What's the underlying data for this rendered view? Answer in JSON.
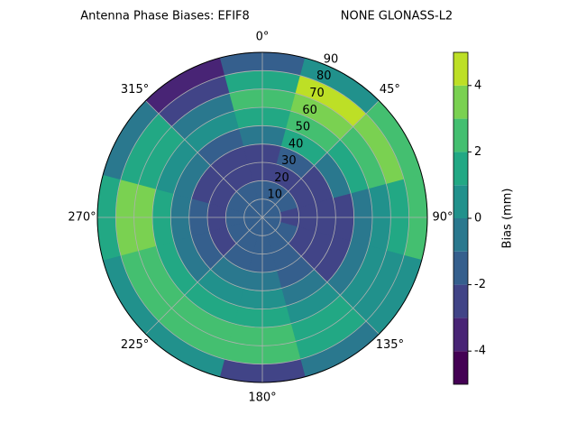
{
  "chart_data": {
    "type": "polar-contour",
    "title": "Antenna Phase Biases: EFIF8",
    "subtitle": "NONE GLONASS-L2",
    "colorbar_label": "Bias (mm)",
    "theta": [
      0,
      30,
      60,
      90,
      120,
      150,
      180,
      210,
      240,
      270,
      300,
      330
    ],
    "r": [
      5,
      15,
      25,
      35,
      45,
      55,
      65,
      75,
      85
    ],
    "values": [
      [
        -1.5,
        -1.5,
        -1.5,
        -1.5,
        -1.5,
        -1.5,
        -1.5,
        -1.5,
        -1.5,
        -1.5,
        -1.5,
        -1.5
      ],
      [
        -1.5,
        -1.5,
        -1.5,
        -2.5,
        -1.5,
        -1.5,
        -1.5,
        -1.5,
        -1.5,
        -1.5,
        -1.5,
        -1.5
      ],
      [
        -2.5,
        -2.5,
        -2.5,
        -2.5,
        -2.5,
        -1.5,
        -1.5,
        -1.5,
        -2.5,
        -2.5,
        -2.5,
        -2.5
      ],
      [
        -2.5,
        -1.5,
        -2.5,
        -2.5,
        -2.5,
        -1.5,
        -0.5,
        -0.5,
        -1.5,
        -1.5,
        -2.5,
        -2.5
      ],
      [
        -0.5,
        1.5,
        -0.5,
        -2.5,
        -2.5,
        -0.5,
        0.5,
        0.5,
        -0.5,
        -0.5,
        -0.5,
        -1.5
      ],
      [
        1.5,
        2.5,
        1.5,
        -0.5,
        -0.5,
        0.5,
        1.5,
        1.5,
        1.5,
        1.5,
        0.5,
        0.5
      ],
      [
        2.5,
        3.5,
        2.5,
        0.5,
        0.5,
        1.5,
        2.5,
        2.5,
        2.5,
        3.5,
        1.5,
        -0.5
      ],
      [
        1.5,
        4.5,
        3.5,
        1.5,
        0.5,
        1.5,
        2.5,
        2.5,
        2.5,
        3.5,
        1.5,
        -2.5
      ],
      [
        -1.5,
        0.5,
        2.5,
        2.5,
        0.5,
        -0.5,
        -2.5,
        0.5,
        0.5,
        1.5,
        -0.5,
        -3.5
      ]
    ],
    "rlim": [
      0,
      90
    ],
    "rticks": [
      10,
      20,
      30,
      40,
      50,
      60,
      70,
      80,
      90
    ],
    "thetaticks": [
      {
        "value": 0,
        "label": "0°"
      },
      {
        "value": 45,
        "label": "45°"
      },
      {
        "value": 90,
        "label": "90°"
      },
      {
        "value": 135,
        "label": "135°"
      },
      {
        "value": 180,
        "label": "180°"
      },
      {
        "value": 225,
        "label": "225°"
      },
      {
        "value": 270,
        "label": "270°"
      },
      {
        "value": 315,
        "label": "315°"
      }
    ],
    "levels": [
      -5,
      -4,
      -3,
      -2,
      -1,
      0,
      1,
      2,
      3,
      4,
      5
    ],
    "colors": [
      "#440154",
      "#482475",
      "#414487",
      "#355f8d",
      "#2a788e",
      "#21918c",
      "#22a884",
      "#44bf70",
      "#7ad151",
      "#bddf26",
      "#fde725"
    ],
    "clim": [
      -5,
      5
    ],
    "cticks": [
      -4,
      -2,
      0,
      2,
      4
    ],
    "grid": true
  }
}
